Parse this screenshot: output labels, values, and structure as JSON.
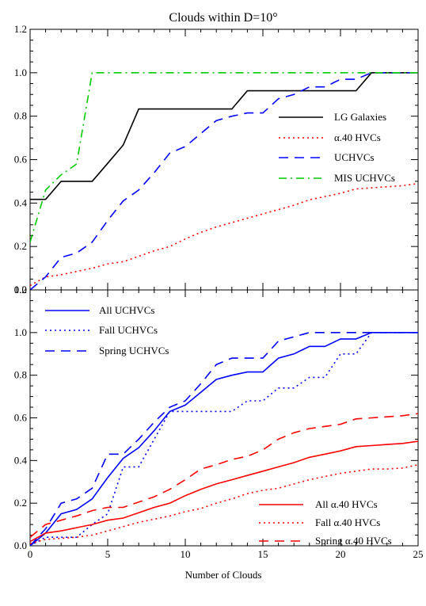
{
  "chart_data": [
    {
      "type": "line",
      "title": "Clouds within D=10°",
      "xlabel": "",
      "ylabel": "",
      "xlim": [
        0,
        25
      ],
      "ylim": [
        0,
        1.2
      ],
      "xticks": [
        0,
        5,
        10,
        15,
        20,
        25
      ],
      "yticks": [
        "0.0",
        "0.2",
        "0.4",
        "0.6",
        "0.8",
        "1.0",
        "1.2"
      ],
      "legend_position": "right-middle",
      "series": [
        {
          "name": "LG Galaxies",
          "color": "#000000",
          "dash": "solid",
          "x": [
            0,
            1,
            2,
            3,
            4,
            5,
            6,
            7,
            8,
            9,
            10,
            11,
            12,
            13,
            14,
            15,
            16,
            17,
            18,
            19,
            20,
            21,
            22,
            23,
            24,
            25
          ],
          "y": [
            0.417,
            0.417,
            0.5,
            0.5,
            0.5,
            0.583,
            0.667,
            0.833,
            0.833,
            0.833,
            0.833,
            0.833,
            0.833,
            0.833,
            0.917,
            0.917,
            0.917,
            0.917,
            0.917,
            0.917,
            0.917,
            0.917,
            1.0,
            1.0,
            1.0,
            1.0
          ]
        },
        {
          "name": "α.40 HVCs",
          "color": "#ff0000",
          "dash": "dotted",
          "x": [
            0,
            1,
            2,
            3,
            4,
            5,
            6,
            7,
            8,
            9,
            10,
            11,
            12,
            13,
            14,
            15,
            16,
            17,
            18,
            19,
            20,
            21,
            22,
            23,
            24,
            25
          ],
          "y": [
            0.02,
            0.06,
            0.07,
            0.085,
            0.1,
            0.12,
            0.13,
            0.155,
            0.18,
            0.2,
            0.235,
            0.265,
            0.29,
            0.31,
            0.33,
            0.35,
            0.37,
            0.39,
            0.415,
            0.43,
            0.445,
            0.465,
            0.47,
            0.475,
            0.48,
            0.49
          ]
        },
        {
          "name": "UCHVCs",
          "color": "#0000ff",
          "dash": "dashed",
          "x": [
            0,
            1,
            2,
            3,
            4,
            5,
            6,
            7,
            8,
            9,
            10,
            11,
            12,
            13,
            14,
            15,
            16,
            17,
            18,
            19,
            20,
            21,
            22,
            23,
            24,
            25
          ],
          "y": [
            0.0,
            0.06,
            0.15,
            0.17,
            0.22,
            0.32,
            0.41,
            0.46,
            0.54,
            0.63,
            0.66,
            0.72,
            0.78,
            0.8,
            0.815,
            0.815,
            0.88,
            0.9,
            0.935,
            0.935,
            0.97,
            0.97,
            1.0,
            1.0,
            1.0,
            1.0
          ]
        },
        {
          "name": "MIS UCHVCs",
          "color": "#00cc00",
          "dash": "dashdot",
          "x": [
            0,
            1,
            2,
            3,
            4,
            5,
            6,
            7,
            8,
            9,
            10,
            11,
            12,
            13,
            14,
            15,
            16,
            17,
            18,
            19,
            20,
            21,
            22,
            23,
            24,
            25
          ],
          "y": [
            0.22,
            0.46,
            0.53,
            0.58,
            1.0,
            1.0,
            1.0,
            1.0,
            1.0,
            1.0,
            1.0,
            1.0,
            1.0,
            1.0,
            1.0,
            1.0,
            1.0,
            1.0,
            1.0,
            1.0,
            1.0,
            1.0,
            1.0,
            1.0,
            1.0,
            1.0
          ]
        }
      ]
    },
    {
      "type": "line",
      "title": "",
      "xlabel": "Number of Clouds",
      "ylabel": "",
      "xlim": [
        0,
        25
      ],
      "ylim": [
        0,
        1.2
      ],
      "xticks": [
        0,
        5,
        10,
        15,
        20,
        25
      ],
      "yticks": [
        "0.0",
        "0.2",
        "0.4",
        "0.6",
        "0.8",
        "1.0",
        "1.2"
      ],
      "legend_position": "top-left and bottom-right",
      "series": [
        {
          "name": "All UCHVCs",
          "color": "#0000ff",
          "dash": "solid",
          "x": [
            0,
            1,
            2,
            3,
            4,
            5,
            6,
            7,
            8,
            9,
            10,
            11,
            12,
            13,
            14,
            15,
            16,
            17,
            18,
            19,
            20,
            21,
            22,
            23,
            24,
            25
          ],
          "y": [
            0.0,
            0.06,
            0.15,
            0.17,
            0.22,
            0.32,
            0.41,
            0.46,
            0.54,
            0.63,
            0.66,
            0.72,
            0.78,
            0.8,
            0.815,
            0.815,
            0.88,
            0.9,
            0.935,
            0.935,
            0.97,
            0.97,
            1.0,
            1.0,
            1.0,
            1.0
          ]
        },
        {
          "name": "Fall UCHVCs",
          "color": "#0000ff",
          "dash": "dotted",
          "x": [
            0,
            1,
            2,
            3,
            4,
            5,
            6,
            7,
            8,
            9,
            10,
            11,
            12,
            13,
            14,
            15,
            16,
            17,
            18,
            19,
            20,
            21,
            22,
            23,
            24,
            25
          ],
          "y": [
            0.0,
            0.04,
            0.04,
            0.04,
            0.1,
            0.15,
            0.37,
            0.37,
            0.5,
            0.63,
            0.63,
            0.63,
            0.63,
            0.63,
            0.68,
            0.68,
            0.74,
            0.74,
            0.79,
            0.79,
            0.9,
            0.9,
            1.0,
            1.0,
            1.0,
            1.0
          ]
        },
        {
          "name": "Spring UCHVCs",
          "color": "#0000ff",
          "dash": "dashed",
          "x": [
            0,
            1,
            2,
            3,
            4,
            5,
            6,
            7,
            8,
            9,
            10,
            11,
            12,
            13,
            14,
            15,
            16,
            17,
            18,
            19,
            20,
            21,
            22,
            23,
            24,
            25
          ],
          "y": [
            0.0,
            0.08,
            0.2,
            0.22,
            0.27,
            0.43,
            0.43,
            0.5,
            0.58,
            0.65,
            0.68,
            0.76,
            0.85,
            0.88,
            0.88,
            0.88,
            0.96,
            0.98,
            1.0,
            1.0,
            1.0,
            1.0,
            1.0,
            1.0,
            1.0,
            1.0
          ]
        },
        {
          "name": "All α.40 HVCs",
          "color": "#ff0000",
          "dash": "solid",
          "x": [
            0,
            1,
            2,
            3,
            4,
            5,
            6,
            7,
            8,
            9,
            10,
            11,
            12,
            13,
            14,
            15,
            16,
            17,
            18,
            19,
            20,
            21,
            22,
            23,
            24,
            25
          ],
          "y": [
            0.02,
            0.06,
            0.07,
            0.085,
            0.1,
            0.12,
            0.13,
            0.155,
            0.18,
            0.2,
            0.235,
            0.265,
            0.29,
            0.31,
            0.33,
            0.35,
            0.37,
            0.39,
            0.415,
            0.43,
            0.445,
            0.465,
            0.47,
            0.475,
            0.48,
            0.49
          ]
        },
        {
          "name": "Fall α.40 HVCs",
          "color": "#ff0000",
          "dash": "dotted",
          "x": [
            0,
            1,
            2,
            3,
            4,
            5,
            6,
            7,
            8,
            9,
            10,
            11,
            12,
            13,
            14,
            15,
            16,
            17,
            18,
            19,
            20,
            21,
            22,
            23,
            24,
            25
          ],
          "y": [
            0.01,
            0.03,
            0.035,
            0.04,
            0.05,
            0.07,
            0.09,
            0.11,
            0.125,
            0.14,
            0.16,
            0.175,
            0.2,
            0.22,
            0.245,
            0.26,
            0.27,
            0.29,
            0.31,
            0.325,
            0.34,
            0.35,
            0.36,
            0.36,
            0.365,
            0.38
          ]
        },
        {
          "name": "Spring α.40 HVCs",
          "color": "#ff0000",
          "dash": "dashed",
          "x": [
            0,
            1,
            2,
            3,
            4,
            5,
            6,
            7,
            8,
            9,
            10,
            11,
            12,
            13,
            14,
            15,
            16,
            17,
            18,
            19,
            20,
            21,
            22,
            23,
            24,
            25
          ],
          "y": [
            0.04,
            0.1,
            0.12,
            0.14,
            0.165,
            0.18,
            0.18,
            0.205,
            0.23,
            0.265,
            0.31,
            0.36,
            0.38,
            0.405,
            0.42,
            0.45,
            0.5,
            0.53,
            0.55,
            0.56,
            0.57,
            0.595,
            0.6,
            0.605,
            0.61,
            0.62
          ]
        }
      ]
    }
  ]
}
